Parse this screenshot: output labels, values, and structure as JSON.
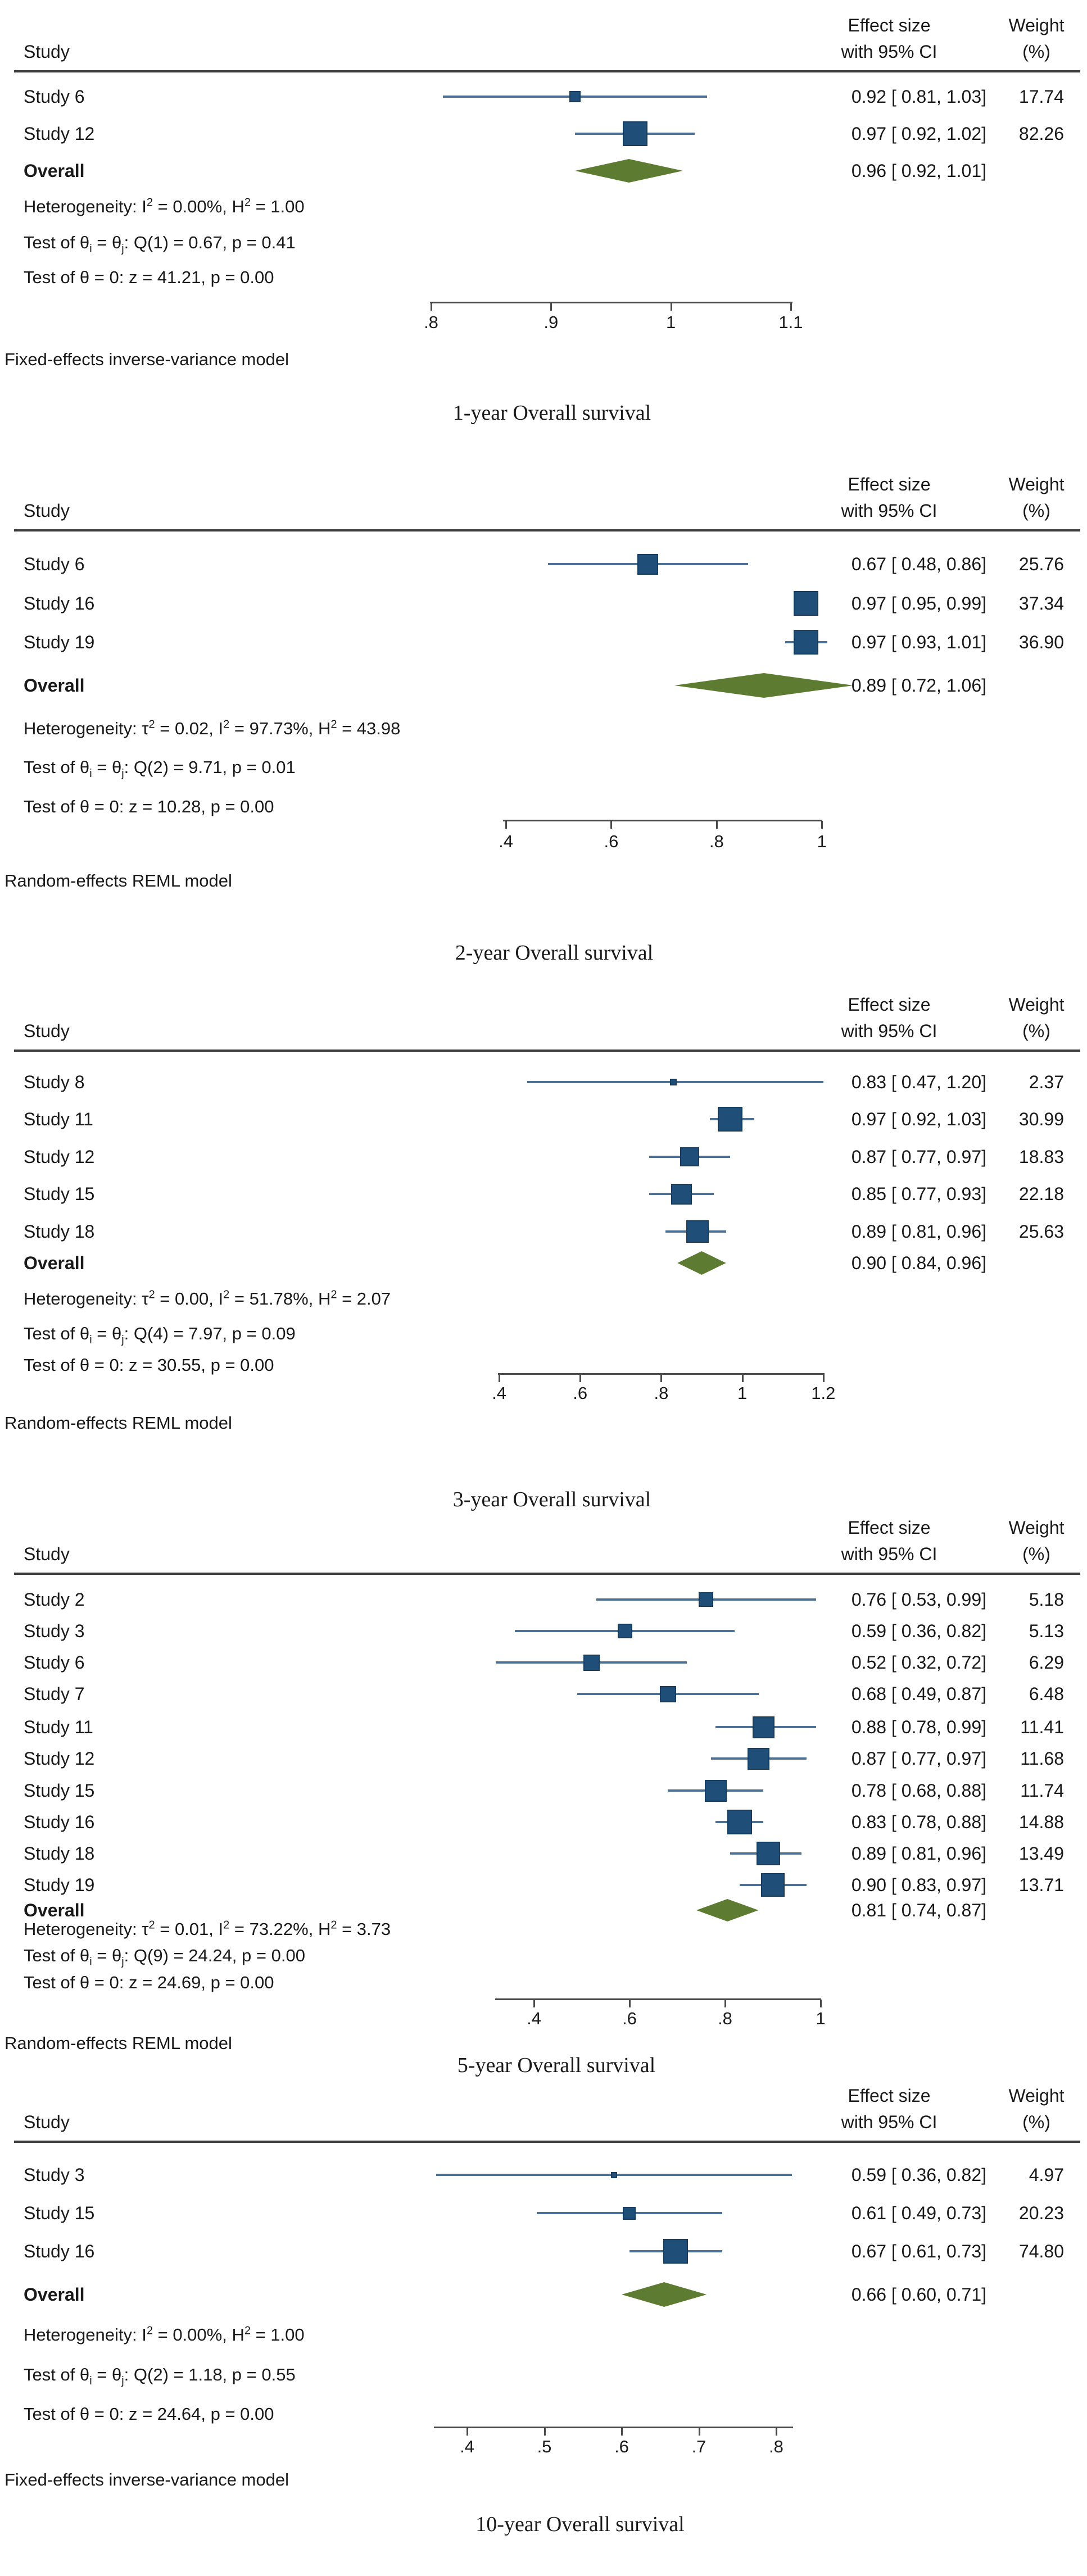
{
  "figure": {
    "background": "#ffffff"
  },
  "colors": {
    "text": "#1a1a1a",
    "marker_fill": "#1f4e79",
    "marker_border": "#173c5c",
    "ci_line": "#4d7195",
    "diamond": "#5d7c31",
    "rule": "#3d3d3d",
    "axis": "#4a4a4a"
  },
  "columns": {
    "study": "Study",
    "effect_line1": "Effect size",
    "effect_line2": "with 95% CI",
    "weight_line1": "Weight",
    "weight_line2": "(%)"
  },
  "chart_data": [
    {
      "type": "forest",
      "title": "1-year Overall survival",
      "model": "Fixed-effects inverse-variance model",
      "axis": {
        "ticks": [
          {
            "label": ".8",
            "value": 0.8
          },
          {
            "label": ".9",
            "value": 0.9
          },
          {
            "label": "1",
            "value": 1.0
          },
          {
            "label": "1.1",
            "value": 1.1
          }
        ],
        "range": [
          0.8,
          1.1
        ]
      },
      "studies": [
        {
          "label": "Study 6",
          "est": 0.92,
          "lo": 0.81,
          "hi": 1.03,
          "ci_text": "0.92 [ 0.81, 1.03]",
          "weight": 17.74,
          "weight_text": "17.74"
        },
        {
          "label": "Study 12",
          "est": 0.97,
          "lo": 0.92,
          "hi": 1.02,
          "ci_text": "0.97 [ 0.92, 1.02]",
          "weight": 82.26,
          "weight_text": "82.26"
        }
      ],
      "overall": {
        "label": "Overall",
        "est": 0.96,
        "lo": 0.92,
        "hi": 1.01,
        "ci_text": "0.96 [ 0.92, 1.01]"
      },
      "heterogeneity": "Heterogeneity: I^2 = 0.00%, H^2 = 1.00",
      "test_homogeneity": "Test of θ_i = θ_j: Q(1) = 0.67, p = 0.41",
      "test_zero": "Test of θ = 0: z = 41.21, p = 0.00"
    },
    {
      "type": "forest",
      "title": "2-year Overall survival",
      "model": "Random-effects REML model",
      "axis": {
        "ticks": [
          {
            "label": ".4",
            "value": 0.4
          },
          {
            "label": ".6",
            "value": 0.6
          },
          {
            "label": ".8",
            "value": 0.8
          },
          {
            "label": "1",
            "value": 1.0
          }
        ],
        "range": [
          0.4,
          1.0
        ]
      },
      "studies": [
        {
          "label": "Study 6",
          "est": 0.67,
          "lo": 0.48,
          "hi": 0.86,
          "ci_text": "0.67 [ 0.48, 0.86]",
          "weight": 25.76,
          "weight_text": "25.76"
        },
        {
          "label": "Study 16",
          "est": 0.97,
          "lo": 0.95,
          "hi": 0.99,
          "ci_text": "0.97 [ 0.95, 0.99]",
          "weight": 37.34,
          "weight_text": "37.34"
        },
        {
          "label": "Study 19",
          "est": 0.97,
          "lo": 0.93,
          "hi": 1.01,
          "ci_text": "0.97 [ 0.93, 1.01]",
          "weight": 36.9,
          "weight_text": "36.90"
        }
      ],
      "overall": {
        "label": "Overall",
        "est": 0.89,
        "lo": 0.72,
        "hi": 1.06,
        "ci_text": "0.89 [ 0.72, 1.06]"
      },
      "heterogeneity": "Heterogeneity: τ^2 = 0.02, I^2 = 97.73%, H^2 = 43.98",
      "test_homogeneity": "Test of θ_i = θ_j: Q(2) = 9.71, p = 0.01",
      "test_zero": "Test of θ = 0: z = 10.28, p = 0.00"
    },
    {
      "type": "forest",
      "title": "3-year Overall survival",
      "model": "Random-effects REML model",
      "axis": {
        "ticks": [
          {
            "label": ".4",
            "value": 0.4
          },
          {
            "label": ".6",
            "value": 0.6
          },
          {
            "label": ".8",
            "value": 0.8
          },
          {
            "label": "1",
            "value": 1.0
          },
          {
            "label": "1.2",
            "value": 1.2
          }
        ],
        "range": [
          0.4,
          1.2
        ]
      },
      "studies": [
        {
          "label": "Study 8",
          "est": 0.83,
          "lo": 0.47,
          "hi": 1.2,
          "ci_text": "0.83 [ 0.47, 1.20]",
          "weight": 2.37,
          "weight_text": "2.37"
        },
        {
          "label": "Study 11",
          "est": 0.97,
          "lo": 0.92,
          "hi": 1.03,
          "ci_text": "0.97 [ 0.92, 1.03]",
          "weight": 30.99,
          "weight_text": "30.99"
        },
        {
          "label": "Study 12",
          "est": 0.87,
          "lo": 0.77,
          "hi": 0.97,
          "ci_text": "0.87 [ 0.77, 0.97]",
          "weight": 18.83,
          "weight_text": "18.83"
        },
        {
          "label": "Study 15",
          "est": 0.85,
          "lo": 0.77,
          "hi": 0.93,
          "ci_text": "0.85 [ 0.77, 0.93]",
          "weight": 22.18,
          "weight_text": "22.18"
        },
        {
          "label": "Study 18",
          "est": 0.89,
          "lo": 0.81,
          "hi": 0.96,
          "ci_text": "0.89 [ 0.81, 0.96]",
          "weight": 25.63,
          "weight_text": "25.63"
        }
      ],
      "overall": {
        "label": "Overall",
        "est": 0.9,
        "lo": 0.84,
        "hi": 0.96,
        "ci_text": "0.90 [ 0.84, 0.96]"
      },
      "heterogeneity": "Heterogeneity: τ^2 = 0.00, I^2 = 51.78%, H^2 = 2.07",
      "test_homogeneity": "Test of θ_i = θ_j: Q(4) = 7.97, p = 0.09",
      "test_zero": "Test of θ = 0: z = 30.55, p = 0.00"
    },
    {
      "type": "forest",
      "title": "5-year Overall survival",
      "model": "Random-effects REML model",
      "axis": {
        "ticks": [
          {
            "label": ".4",
            "value": 0.4
          },
          {
            "label": ".6",
            "value": 0.6
          },
          {
            "label": ".8",
            "value": 0.8
          },
          {
            "label": "1",
            "value": 1.0
          }
        ],
        "range": [
          0.4,
          1.0
        ]
      },
      "studies": [
        {
          "label": "Study 2",
          "est": 0.76,
          "lo": 0.53,
          "hi": 0.99,
          "ci_text": "0.76 [ 0.53, 0.99]",
          "weight": 5.18,
          "weight_text": "5.18"
        },
        {
          "label": "Study 3",
          "est": 0.59,
          "lo": 0.36,
          "hi": 0.82,
          "ci_text": "0.59 [ 0.36, 0.82]",
          "weight": 5.13,
          "weight_text": "5.13"
        },
        {
          "label": "Study 6",
          "est": 0.52,
          "lo": 0.32,
          "hi": 0.72,
          "ci_text": "0.52 [ 0.32, 0.72]",
          "weight": 6.29,
          "weight_text": "6.29"
        },
        {
          "label": "Study 7",
          "est": 0.68,
          "lo": 0.49,
          "hi": 0.87,
          "ci_text": "0.68 [ 0.49, 0.87]",
          "weight": 6.48,
          "weight_text": "6.48"
        },
        {
          "label": "Study 11",
          "est": 0.88,
          "lo": 0.78,
          "hi": 0.99,
          "ci_text": "0.88 [ 0.78, 0.99]",
          "weight": 11.41,
          "weight_text": "11.41"
        },
        {
          "label": "Study 12",
          "est": 0.87,
          "lo": 0.77,
          "hi": 0.97,
          "ci_text": "0.87 [ 0.77, 0.97]",
          "weight": 11.68,
          "weight_text": "11.68"
        },
        {
          "label": "Study 15",
          "est": 0.78,
          "lo": 0.68,
          "hi": 0.88,
          "ci_text": "0.78 [ 0.68, 0.88]",
          "weight": 11.74,
          "weight_text": "11.74"
        },
        {
          "label": "Study 16",
          "est": 0.83,
          "lo": 0.78,
          "hi": 0.88,
          "ci_text": "0.83 [ 0.78, 0.88]",
          "weight": 14.88,
          "weight_text": "14.88"
        },
        {
          "label": "Study 18",
          "est": 0.89,
          "lo": 0.81,
          "hi": 0.96,
          "ci_text": "0.89 [ 0.81, 0.96]",
          "weight": 13.49,
          "weight_text": "13.49"
        },
        {
          "label": "Study 19",
          "est": 0.9,
          "lo": 0.83,
          "hi": 0.97,
          "ci_text": "0.90 [ 0.83, 0.97]",
          "weight": 13.71,
          "weight_text": "13.71"
        }
      ],
      "overall": {
        "label": "Overall",
        "est": 0.81,
        "lo": 0.74,
        "hi": 0.87,
        "ci_text": "0.81 [ 0.74, 0.87]"
      },
      "heterogeneity": "Heterogeneity: τ^2 = 0.01, I^2 = 73.22%, H^2 = 3.73",
      "test_homogeneity": "Test of θ_i = θ_j: Q(9) = 24.24, p = 0.00",
      "test_zero": "Test of θ = 0: z = 24.69, p = 0.00"
    },
    {
      "type": "forest",
      "title": "10-year Overall survival",
      "model": "Fixed-effects inverse-variance model",
      "axis": {
        "ticks": [
          {
            "label": ".4",
            "value": 0.4
          },
          {
            "label": ".5",
            "value": 0.5
          },
          {
            "label": ".6",
            "value": 0.6
          },
          {
            "label": ".7",
            "value": 0.7
          },
          {
            "label": ".8",
            "value": 0.8
          }
        ],
        "range": [
          0.4,
          0.8
        ]
      },
      "studies": [
        {
          "label": "Study 3",
          "est": 0.59,
          "lo": 0.36,
          "hi": 0.82,
          "ci_text": "0.59 [ 0.36, 0.82]",
          "weight": 4.97,
          "weight_text": "4.97"
        },
        {
          "label": "Study 15",
          "est": 0.61,
          "lo": 0.49,
          "hi": 0.73,
          "ci_text": "0.61 [ 0.49, 0.73]",
          "weight": 20.23,
          "weight_text": "20.23"
        },
        {
          "label": "Study 16",
          "est": 0.67,
          "lo": 0.61,
          "hi": 0.73,
          "ci_text": "0.67 [ 0.61, 0.73]",
          "weight": 74.8,
          "weight_text": "74.80"
        }
      ],
      "overall": {
        "label": "Overall",
        "est": 0.66,
        "lo": 0.6,
        "hi": 0.71,
        "ci_text": "0.66 [ 0.60, 0.71]"
      },
      "heterogeneity": "Heterogeneity: I^2 = 0.00%, H^2 = 1.00",
      "test_homogeneity": "Test of θ_i = θ_j: Q(2) = 1.18, p = 0.55",
      "test_zero": "Test of θ = 0: z = 24.64, p = 0.00"
    }
  ]
}
